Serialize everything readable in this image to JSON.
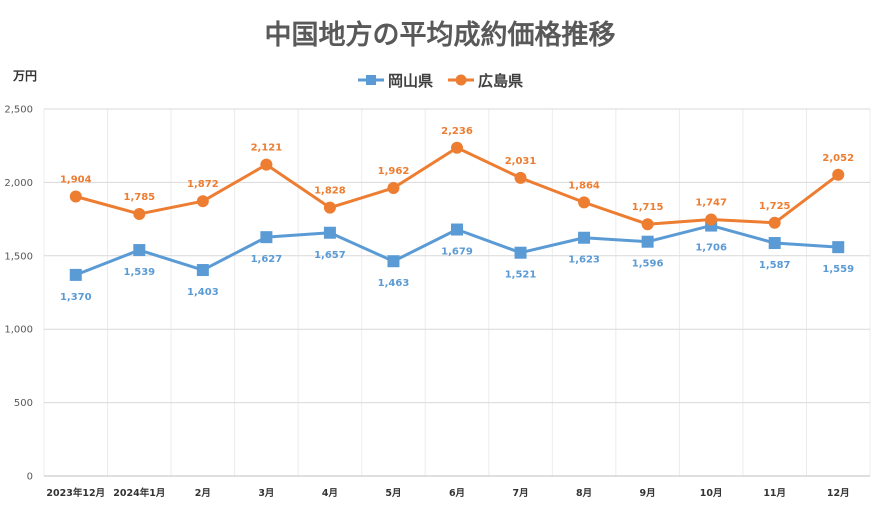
{
  "chart_data": {
    "type": "line",
    "title": "中国地方の平均成約価格推移",
    "ylabel": "万円",
    "ylim": [
      0,
      2500
    ],
    "yticks": [
      0,
      500,
      1000,
      1500,
      2000,
      2500
    ],
    "ytick_labels": [
      "0",
      "500",
      "1,000",
      "1,500",
      "2,000",
      "2,500"
    ],
    "categories": [
      "2023年12月",
      "2024年1月",
      "2月",
      "3月",
      "4月",
      "5月",
      "6月",
      "7月",
      "8月",
      "9月",
      "10月",
      "11月",
      "12月"
    ],
    "legend_position": "top-center",
    "grid": true,
    "series": [
      {
        "name": "岡山県",
        "color": "#5b9bd5",
        "marker": "square",
        "values": [
          1370,
          1539,
          1403,
          1627,
          1657,
          1463,
          1679,
          1521,
          1623,
          1596,
          1706,
          1587,
          1559
        ],
        "labels": [
          "1,370",
          "1,539",
          "1,403",
          "1,627",
          "1,657",
          "1,463",
          "1,679",
          "1,521",
          "1,623",
          "1,596",
          "1,706",
          "1,587",
          "1,559"
        ],
        "label_position": "below"
      },
      {
        "name": "広島県",
        "color": "#ed7d31",
        "marker": "circle",
        "values": [
          1904,
          1785,
          1872,
          2121,
          1828,
          1962,
          2236,
          2031,
          1864,
          1715,
          1747,
          1725,
          2052
        ],
        "labels": [
          "1,904",
          "1,785",
          "1,872",
          "2,121",
          "1,828",
          "1,962",
          "2,236",
          "2,031",
          "1,864",
          "1,715",
          "1,747",
          "1,725",
          "2,052"
        ],
        "label_position": "above"
      }
    ]
  }
}
